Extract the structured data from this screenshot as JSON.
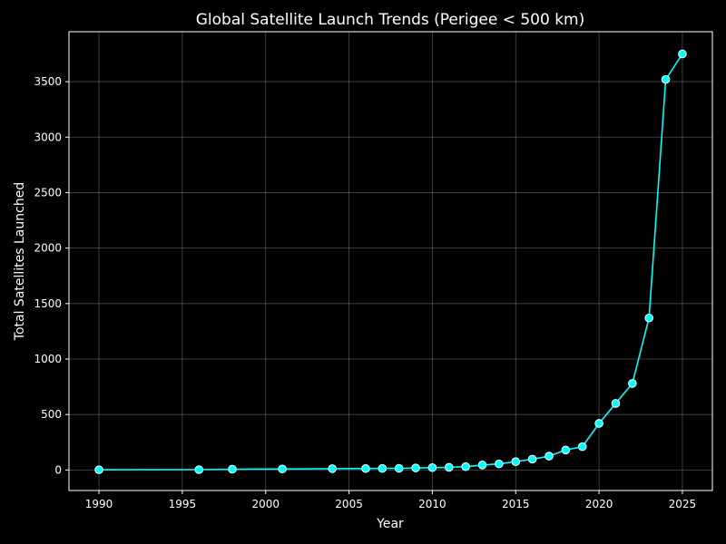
{
  "chart_data": {
    "type": "line",
    "title": "Global Satellite Launch Trends (Perigee < 500 km)",
    "xlabel": "Year",
    "ylabel": "Total Satellites Launched",
    "xlim": [
      1988.2,
      2026.8
    ],
    "ylim": [
      -185,
      3950
    ],
    "xticks": [
      1990,
      1995,
      2000,
      2005,
      2010,
      2015,
      2020,
      2025
    ],
    "yticks": [
      0,
      500,
      1000,
      1500,
      2000,
      2500,
      3000,
      3500
    ],
    "grid": true,
    "legend": "none",
    "series": [
      {
        "color": "#00ffff",
        "marker": "circle",
        "x": [
          1990,
          1996,
          1998,
          2001,
          2004,
          2006,
          2007,
          2008,
          2009,
          2010,
          2011,
          2012,
          2013,
          2014,
          2015,
          2016,
          2017,
          2018,
          2019,
          2020,
          2021,
          2022,
          2023,
          2024,
          2025
        ],
        "y": [
          2,
          3,
          7,
          9,
          12,
          13,
          14,
          15,
          18,
          21,
          24,
          30,
          45,
          55,
          75,
          98,
          125,
          180,
          210,
          420,
          600,
          780,
          1370,
          3520,
          3750
        ]
      }
    ]
  }
}
